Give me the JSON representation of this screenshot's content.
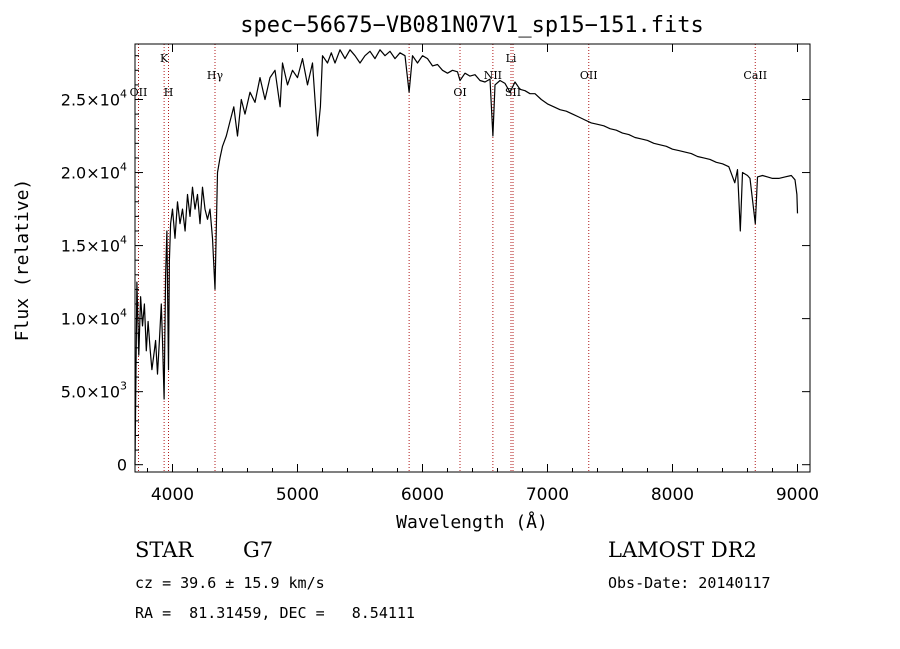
{
  "chart_data": {
    "type": "line",
    "title": "spec−56675−VB081N07V1_sp15−151.fits",
    "xlabel": "Wavelength (Å)",
    "ylabel": "Flux (relative)",
    "xlim": [
      3700,
      9100
    ],
    "ylim": [
      -500,
      28800
    ],
    "x_ticks": [
      {
        "value": 4000,
        "label": "4000"
      },
      {
        "value": 5000,
        "label": "5000"
      },
      {
        "value": 6000,
        "label": "6000"
      },
      {
        "value": 7000,
        "label": "7000"
      },
      {
        "value": 8000,
        "label": "8000"
      },
      {
        "value": 9000,
        "label": "9000"
      }
    ],
    "y_ticks": [
      {
        "value": 0,
        "mant": "0",
        "exp": ""
      },
      {
        "value": 5000,
        "mant": "5.0×10",
        "exp": "3"
      },
      {
        "value": 10000,
        "mant": "1.0×10",
        "exp": "4"
      },
      {
        "value": 15000,
        "mant": "1.5×10",
        "exp": "4"
      },
      {
        "value": 20000,
        "mant": "2.0×10",
        "exp": "4"
      },
      {
        "value": 25000,
        "mant": "2.5×10",
        "exp": "4"
      }
    ],
    "grid": false,
    "series": [
      {
        "color": "#000000",
        "x": [
          3700,
          3715,
          3730,
          3745,
          3760,
          3775,
          3790,
          3805,
          3820,
          3835,
          3850,
          3865,
          3880,
          3895,
          3910,
          3920,
          3933,
          3945,
          3955,
          3968,
          3975,
          3985,
          4000,
          4020,
          4040,
          4060,
          4080,
          4101,
          4120,
          4140,
          4160,
          4180,
          4200,
          4220,
          4240,
          4260,
          4280,
          4300,
          4320,
          4340,
          4360,
          4380,
          4400,
          4430,
          4460,
          4490,
          4520,
          4550,
          4580,
          4620,
          4660,
          4700,
          4740,
          4780,
          4820,
          4861,
          4880,
          4920,
          4960,
          5000,
          5040,
          5080,
          5120,
          5160,
          5183,
          5200,
          5240,
          5270,
          5300,
          5340,
          5380,
          5420,
          5460,
          5500,
          5540,
          5580,
          5620,
          5660,
          5700,
          5740,
          5780,
          5820,
          5860,
          5893,
          5920,
          5960,
          6000,
          6040,
          6080,
          6120,
          6160,
          6200,
          6240,
          6280,
          6300,
          6340,
          6380,
          6420,
          6460,
          6500,
          6540,
          6563,
          6580,
          6620,
          6660,
          6700,
          6740,
          6780,
          6820,
          6860,
          6900,
          6950,
          7000,
          7050,
          7100,
          7150,
          7200,
          7250,
          7300,
          7350,
          7400,
          7450,
          7500,
          7550,
          7600,
          7650,
          7700,
          7750,
          7800,
          7850,
          7900,
          7950,
          8000,
          8050,
          8100,
          8150,
          8200,
          8250,
          8300,
          8350,
          8400,
          8450,
          8498,
          8520,
          8542,
          8560,
          8600,
          8620,
          8662,
          8680,
          8720,
          8760,
          8800,
          8850,
          8900,
          8950,
          8980,
          8995,
          9000
        ],
        "y": [
          0,
          12500,
          7500,
          11500,
          9500,
          11000,
          7800,
          9800,
          8000,
          6500,
          7500,
          8500,
          6200,
          8500,
          11000,
          8500,
          4500,
          13000,
          16000,
          6500,
          14000,
          16500,
          17500,
          15500,
          18000,
          16500,
          17500,
          16000,
          18500,
          17000,
          19000,
          17500,
          18500,
          16500,
          19000,
          17500,
          16800,
          17500,
          15500,
          12000,
          20000,
          21000,
          21800,
          22500,
          23500,
          24500,
          22500,
          25000,
          24000,
          25500,
          24800,
          26500,
          25000,
          26500,
          27000,
          24500,
          27500,
          26000,
          27000,
          26500,
          27800,
          26000,
          27500,
          22500,
          24500,
          28000,
          27500,
          28200,
          27500,
          28400,
          27800,
          28400,
          28000,
          27500,
          28000,
          28300,
          27800,
          28400,
          28000,
          28300,
          27800,
          28200,
          28000,
          25500,
          28000,
          27500,
          28000,
          27800,
          27300,
          27400,
          27000,
          26800,
          27000,
          26900,
          26300,
          26800,
          26600,
          26700,
          26300,
          26200,
          26400,
          22500,
          26000,
          26300,
          26100,
          25500,
          26200,
          25700,
          25600,
          25400,
          25400,
          25000,
          24700,
          24500,
          24300,
          24200,
          24000,
          23800,
          23600,
          23400,
          23300,
          23200,
          23000,
          22900,
          22700,
          22600,
          22400,
          22300,
          22200,
          22000,
          21900,
          21800,
          21600,
          21500,
          21400,
          21300,
          21100,
          21000,
          20900,
          20700,
          20600,
          20400,
          19300,
          20200,
          16000,
          20000,
          19800,
          19600,
          16500,
          19700,
          19800,
          19700,
          19600,
          19600,
          19700,
          19800,
          19500,
          18500,
          17200
        ]
      }
    ],
    "lines": [
      {
        "x": 3933,
        "label": "K",
        "row": 0
      },
      {
        "x": 3968,
        "label": "H",
        "row": 2
      },
      {
        "x": 3728,
        "label": "OII",
        "row": 2
      },
      {
        "x": 4340,
        "label": "Hγ",
        "row": 1
      },
      {
        "x": 5893,
        "label": "",
        "row": 0
      },
      {
        "x": 6300,
        "label": "OI",
        "row": 2
      },
      {
        "x": 6563,
        "label": "NII",
        "row": 1
      },
      {
        "x": 6708,
        "label": "Li",
        "row": 0
      },
      {
        "x": 6724,
        "label": "SII",
        "row": 2
      },
      {
        "x": 7330,
        "label": "OII",
        "row": 1
      },
      {
        "x": 8662,
        "label": "CaII",
        "row": 1
      }
    ]
  },
  "info": {
    "type_label": "STAR",
    "subclass": "G7",
    "survey": "LAMOST DR2",
    "cz": "cz = 39.6 ± 15.9 km/s",
    "obs_date": "Obs-Date: 20140117",
    "radec": "RA =  81.31459, DEC =   8.54111"
  }
}
